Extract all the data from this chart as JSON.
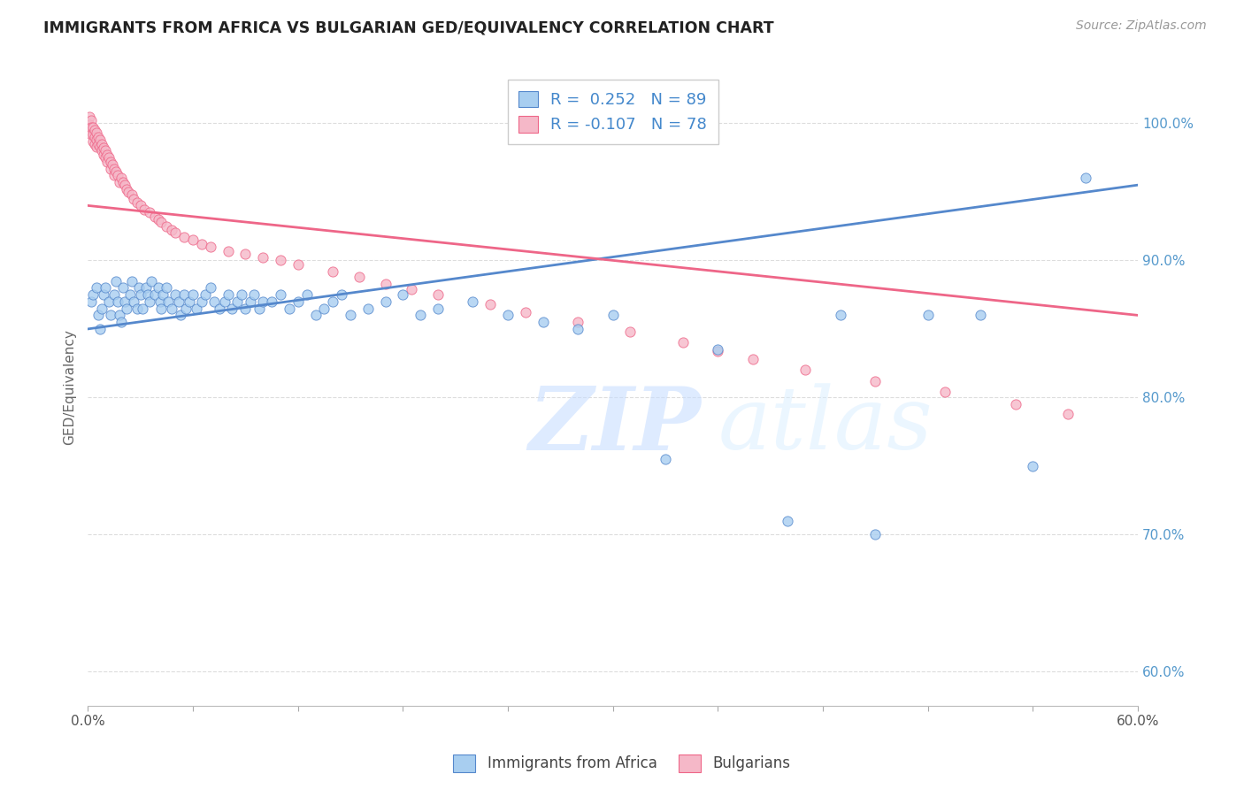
{
  "title": "IMMIGRANTS FROM AFRICA VS BULGARIAN GED/EQUIVALENCY CORRELATION CHART",
  "source": "Source: ZipAtlas.com",
  "ylabel": "GED/Equivalency",
  "ytick_labels": [
    "60.0%",
    "70.0%",
    "80.0%",
    "90.0%",
    "100.0%"
  ],
  "ytick_values": [
    0.6,
    0.7,
    0.8,
    0.9,
    1.0
  ],
  "xmin": 0.0,
  "xmax": 0.6,
  "ymin": 0.575,
  "ymax": 1.04,
  "r_africa": 0.252,
  "n_africa": 89,
  "r_bulgarian": -0.107,
  "n_bulgarian": 78,
  "legend_label_africa": "Immigrants from Africa",
  "legend_label_bulgarian": "Bulgarians",
  "color_africa": "#A8CEF0",
  "color_bulgarian": "#F5B8C8",
  "line_color_africa": "#5588CC",
  "line_color_bulgarian": "#EE6688",
  "africa_scatter_x": [
    0.002,
    0.003,
    0.005,
    0.006,
    0.007,
    0.008,
    0.009,
    0.01,
    0.012,
    0.013,
    0.015,
    0.016,
    0.017,
    0.018,
    0.019,
    0.02,
    0.021,
    0.022,
    0.024,
    0.025,
    0.026,
    0.028,
    0.029,
    0.03,
    0.031,
    0.033,
    0.034,
    0.035,
    0.036,
    0.038,
    0.04,
    0.041,
    0.042,
    0.043,
    0.045,
    0.046,
    0.048,
    0.05,
    0.052,
    0.053,
    0.055,
    0.056,
    0.058,
    0.06,
    0.062,
    0.065,
    0.067,
    0.07,
    0.072,
    0.075,
    0.078,
    0.08,
    0.082,
    0.085,
    0.088,
    0.09,
    0.093,
    0.095,
    0.098,
    0.1,
    0.105,
    0.11,
    0.115,
    0.12,
    0.125,
    0.13,
    0.135,
    0.14,
    0.145,
    0.15,
    0.16,
    0.17,
    0.18,
    0.19,
    0.2,
    0.22,
    0.24,
    0.26,
    0.28,
    0.3,
    0.33,
    0.36,
    0.4,
    0.43,
    0.45,
    0.48,
    0.51,
    0.54,
    0.57
  ],
  "africa_scatter_y": [
    0.87,
    0.875,
    0.88,
    0.86,
    0.85,
    0.865,
    0.875,
    0.88,
    0.87,
    0.86,
    0.875,
    0.885,
    0.87,
    0.86,
    0.855,
    0.88,
    0.87,
    0.865,
    0.875,
    0.885,
    0.87,
    0.865,
    0.88,
    0.875,
    0.865,
    0.88,
    0.875,
    0.87,
    0.885,
    0.875,
    0.88,
    0.87,
    0.865,
    0.875,
    0.88,
    0.87,
    0.865,
    0.875,
    0.87,
    0.86,
    0.875,
    0.865,
    0.87,
    0.875,
    0.865,
    0.87,
    0.875,
    0.88,
    0.87,
    0.865,
    0.87,
    0.875,
    0.865,
    0.87,
    0.875,
    0.865,
    0.87,
    0.875,
    0.865,
    0.87,
    0.87,
    0.875,
    0.865,
    0.87,
    0.875,
    0.86,
    0.865,
    0.87,
    0.875,
    0.86,
    0.865,
    0.87,
    0.875,
    0.86,
    0.865,
    0.87,
    0.86,
    0.855,
    0.85,
    0.86,
    0.755,
    0.835,
    0.71,
    0.86,
    0.7,
    0.86,
    0.86,
    0.75,
    0.96
  ],
  "bulgarian_scatter_x": [
    0.001,
    0.001,
    0.002,
    0.002,
    0.002,
    0.003,
    0.003,
    0.003,
    0.004,
    0.004,
    0.004,
    0.005,
    0.005,
    0.005,
    0.006,
    0.006,
    0.007,
    0.007,
    0.008,
    0.008,
    0.009,
    0.009,
    0.01,
    0.01,
    0.011,
    0.011,
    0.012,
    0.013,
    0.013,
    0.014,
    0.015,
    0.015,
    0.016,
    0.017,
    0.018,
    0.019,
    0.02,
    0.021,
    0.022,
    0.023,
    0.025,
    0.026,
    0.028,
    0.03,
    0.032,
    0.035,
    0.038,
    0.04,
    0.042,
    0.045,
    0.048,
    0.05,
    0.055,
    0.06,
    0.065,
    0.07,
    0.08,
    0.09,
    0.1,
    0.11,
    0.12,
    0.14,
    0.155,
    0.17,
    0.185,
    0.2,
    0.23,
    0.25,
    0.28,
    0.31,
    0.34,
    0.36,
    0.38,
    0.41,
    0.45,
    0.49,
    0.53,
    0.56
  ],
  "bulgarian_scatter_y": [
    1.005,
    0.999,
    1.002,
    0.997,
    0.992,
    0.997,
    0.992,
    0.987,
    0.995,
    0.99,
    0.985,
    0.993,
    0.988,
    0.983,
    0.99,
    0.985,
    0.988,
    0.983,
    0.985,
    0.98,
    0.982,
    0.977,
    0.98,
    0.975,
    0.977,
    0.972,
    0.975,
    0.972,
    0.967,
    0.97,
    0.967,
    0.962,
    0.965,
    0.962,
    0.957,
    0.96,
    0.957,
    0.955,
    0.952,
    0.95,
    0.948,
    0.945,
    0.942,
    0.94,
    0.937,
    0.935,
    0.932,
    0.93,
    0.928,
    0.925,
    0.922,
    0.92,
    0.917,
    0.915,
    0.912,
    0.91,
    0.907,
    0.905,
    0.902,
    0.9,
    0.897,
    0.892,
    0.888,
    0.883,
    0.879,
    0.875,
    0.868,
    0.862,
    0.855,
    0.848,
    0.84,
    0.834,
    0.828,
    0.82,
    0.812,
    0.804,
    0.795,
    0.788
  ],
  "africa_line_x": [
    0.0,
    0.6
  ],
  "africa_line_y": [
    0.85,
    0.955
  ],
  "bulgarian_line_x": [
    0.0,
    0.6
  ],
  "bulgarian_line_y": [
    0.94,
    0.86
  ],
  "watermark_zip": "ZIP",
  "watermark_atlas": "atlas",
  "background_color": "#FFFFFF",
  "grid_color": "#DDDDDD"
}
